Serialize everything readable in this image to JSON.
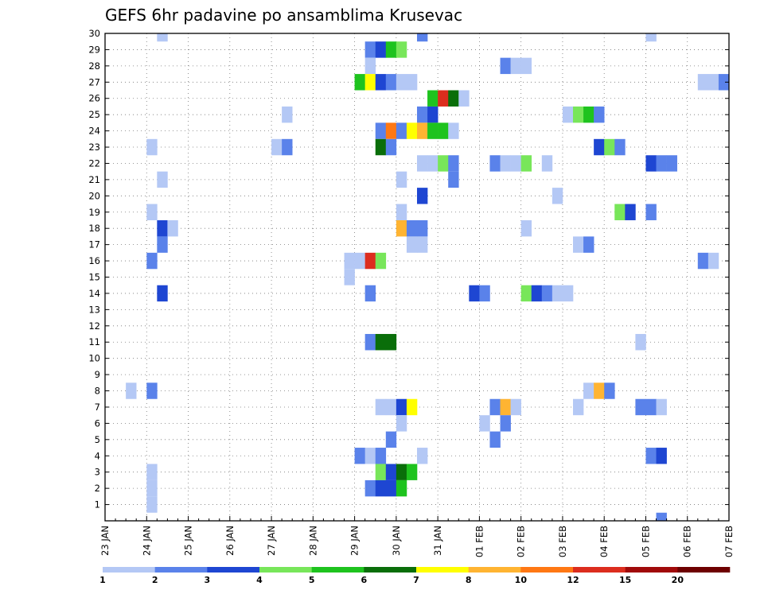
{
  "chart_data": {
    "type": "heatmap",
    "title": "GEFS 6hr padavine po ansamblima Krusevac",
    "xlabel": "",
    "ylabel": "",
    "x_tick_labels": [
      "23 JAN",
      "24 JAN",
      "25 JAN",
      "26 JAN",
      "27 JAN",
      "28 JAN",
      "29 JAN",
      "30 JAN",
      "31 JAN",
      "01 FEB",
      "02 FEB",
      "03 FEB",
      "04 FEB",
      "05 FEB",
      "06 FEB",
      "07 FEB"
    ],
    "y_tick_labels": [
      "1",
      "2",
      "3",
      "4",
      "5",
      "6",
      "7",
      "8",
      "9",
      "10",
      "11",
      "12",
      "13",
      "14",
      "15",
      "16",
      "17",
      "18",
      "19",
      "20",
      "21",
      "22",
      "23",
      "24",
      "25",
      "26",
      "27",
      "28",
      "29",
      "30"
    ],
    "ylim": [
      0,
      30
    ],
    "grid": true,
    "legend_levels": [
      "1",
      "2",
      "3",
      "4",
      "5",
      "6",
      "7",
      "8",
      "10",
      "12",
      "15",
      "20"
    ],
    "level_colors": [
      "#b4c8f5",
      "#5a82ea",
      "#1e46d2",
      "#78e65a",
      "#1ec31e",
      "#0a6e0a",
      "#ffff00",
      "#ffb432",
      "#ff7814",
      "#dc2d1e",
      "#a00a0a",
      "#6e0000"
    ],
    "cells_note": "each cell: [day offset from 23 JAN 00z, member, color level index]",
    "cells": [
      [
        1.25,
        30,
        0
      ],
      [
        7.5,
        30,
        1
      ],
      [
        13.0,
        30,
        0
      ],
      [
        6.25,
        29,
        1
      ],
      [
        6.5,
        29,
        2
      ],
      [
        6.75,
        29,
        4
      ],
      [
        7.0,
        29,
        3
      ],
      [
        6.25,
        28,
        0
      ],
      [
        9.5,
        28,
        1
      ],
      [
        9.75,
        28,
        0
      ],
      [
        10.0,
        28,
        0
      ],
      [
        6.0,
        27,
        4
      ],
      [
        6.25,
        27,
        6
      ],
      [
        6.5,
        27,
        2
      ],
      [
        6.75,
        27,
        1
      ],
      [
        7.0,
        27,
        0
      ],
      [
        7.25,
        27,
        0
      ],
      [
        14.25,
        27,
        0
      ],
      [
        14.5,
        27,
        0
      ],
      [
        14.75,
        27,
        1
      ],
      [
        7.75,
        26,
        4
      ],
      [
        8.0,
        26,
        9
      ],
      [
        8.25,
        26,
        5
      ],
      [
        8.5,
        26,
        0
      ],
      [
        4.25,
        25,
        0
      ],
      [
        7.5,
        25,
        1
      ],
      [
        7.75,
        25,
        2
      ],
      [
        11.0,
        25,
        0
      ],
      [
        11.25,
        25,
        3
      ],
      [
        11.5,
        25,
        4
      ],
      [
        11.75,
        25,
        1
      ],
      [
        6.5,
        24,
        1
      ],
      [
        6.75,
        24,
        8
      ],
      [
        7.0,
        24,
        1
      ],
      [
        7.25,
        24,
        6
      ],
      [
        7.5,
        24,
        7
      ],
      [
        7.75,
        24,
        4
      ],
      [
        8.0,
        24,
        4
      ],
      [
        8.25,
        24,
        0
      ],
      [
        1.0,
        23,
        0
      ],
      [
        4.0,
        23,
        0
      ],
      [
        4.25,
        23,
        1
      ],
      [
        6.5,
        23,
        5
      ],
      [
        6.75,
        23,
        1
      ],
      [
        11.75,
        23,
        2
      ],
      [
        12.0,
        23,
        3
      ],
      [
        12.25,
        23,
        1
      ],
      [
        7.5,
        22,
        0
      ],
      [
        7.75,
        22,
        0
      ],
      [
        8.0,
        22,
        3
      ],
      [
        8.25,
        22,
        1
      ],
      [
        9.25,
        22,
        1
      ],
      [
        9.5,
        22,
        0
      ],
      [
        9.75,
        22,
        0
      ],
      [
        10.0,
        22,
        3
      ],
      [
        10.5,
        22,
        0
      ],
      [
        13.0,
        22,
        2
      ],
      [
        13.25,
        22,
        1
      ],
      [
        13.5,
        22,
        1
      ],
      [
        1.25,
        21,
        0
      ],
      [
        7.0,
        21,
        0
      ],
      [
        8.25,
        21,
        1
      ],
      [
        7.5,
        20,
        2
      ],
      [
        10.75,
        20,
        0
      ],
      [
        1.0,
        19,
        0
      ],
      [
        7.0,
        19,
        0
      ],
      [
        12.25,
        19,
        3
      ],
      [
        12.5,
        19,
        2
      ],
      [
        13.0,
        19,
        1
      ],
      [
        1.25,
        18,
        2
      ],
      [
        1.5,
        18,
        0
      ],
      [
        7.0,
        18,
        7
      ],
      [
        7.25,
        18,
        1
      ],
      [
        7.5,
        18,
        1
      ],
      [
        10.0,
        18,
        0
      ],
      [
        1.25,
        17,
        1
      ],
      [
        7.25,
        17,
        0
      ],
      [
        7.5,
        17,
        0
      ],
      [
        11.25,
        17,
        0
      ],
      [
        11.5,
        17,
        1
      ],
      [
        1.0,
        16,
        1
      ],
      [
        5.75,
        16,
        0
      ],
      [
        6.0,
        16,
        0
      ],
      [
        6.25,
        16,
        9
      ],
      [
        6.5,
        16,
        3
      ],
      [
        14.25,
        16,
        1
      ],
      [
        14.5,
        16,
        0
      ],
      [
        5.75,
        15,
        0
      ],
      [
        1.25,
        14,
        2
      ],
      [
        6.25,
        14,
        1
      ],
      [
        8.75,
        14,
        2
      ],
      [
        9.0,
        14,
        1
      ],
      [
        10.0,
        14,
        3
      ],
      [
        10.25,
        14,
        2
      ],
      [
        10.5,
        14,
        1
      ],
      [
        10.75,
        14,
        0
      ],
      [
        11.0,
        14,
        0
      ],
      [
        6.25,
        11,
        1
      ],
      [
        6.5,
        11,
        5
      ],
      [
        6.75,
        11,
        5
      ],
      [
        12.75,
        11,
        0
      ],
      [
        0.5,
        8,
        0
      ],
      [
        1.0,
        8,
        1
      ],
      [
        11.5,
        8,
        0
      ],
      [
        11.75,
        8,
        7
      ],
      [
        12.0,
        8,
        1
      ],
      [
        6.5,
        7,
        0
      ],
      [
        6.75,
        7,
        0
      ],
      [
        7.0,
        7,
        2
      ],
      [
        7.25,
        7,
        6
      ],
      [
        9.25,
        7,
        1
      ],
      [
        9.5,
        7,
        7
      ],
      [
        9.75,
        7,
        0
      ],
      [
        11.25,
        7,
        0
      ],
      [
        12.75,
        7,
        1
      ],
      [
        13.0,
        7,
        1
      ],
      [
        13.25,
        7,
        0
      ],
      [
        7.0,
        6,
        0
      ],
      [
        9.0,
        6,
        0
      ],
      [
        9.5,
        6,
        1
      ],
      [
        6.75,
        5,
        1
      ],
      [
        9.25,
        5,
        1
      ],
      [
        6.0,
        4,
        1
      ],
      [
        6.25,
        4,
        0
      ],
      [
        6.5,
        4,
        1
      ],
      [
        7.5,
        4,
        0
      ],
      [
        13.0,
        4,
        1
      ],
      [
        13.25,
        4,
        2
      ],
      [
        1.0,
        3,
        0
      ],
      [
        6.5,
        3,
        3
      ],
      [
        6.75,
        3,
        2
      ],
      [
        7.0,
        3,
        5
      ],
      [
        7.25,
        3,
        4
      ],
      [
        1.0,
        2,
        0
      ],
      [
        6.25,
        2,
        1
      ],
      [
        6.5,
        2,
        2
      ],
      [
        6.75,
        2,
        2
      ],
      [
        7.0,
        2,
        4
      ],
      [
        1.0,
        1,
        0
      ],
      [
        13.25,
        0,
        1
      ]
    ]
  }
}
